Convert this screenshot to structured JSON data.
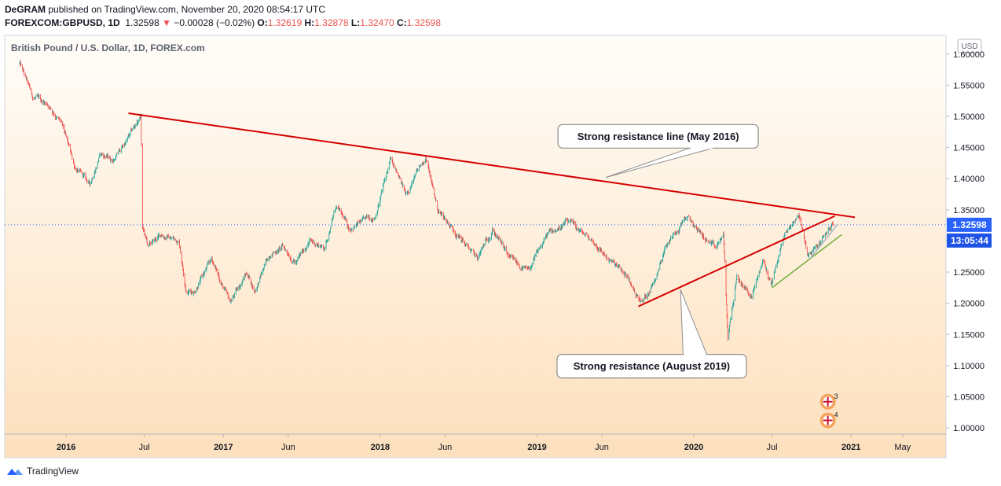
{
  "header": {
    "author": "DeGRAM",
    "published_text": "published on TradingView.com, November 20, 2020 08:54:17 UTC",
    "symbol": "FOREXCOM:GBPUSD, 1D",
    "last": "1.32598",
    "change_arrow": "▼",
    "change": "−0.00028 (−0.02%)",
    "o_label": "O:",
    "o_value": "1.32619",
    "h_label": "H:",
    "h_value": "1.32878",
    "l_label": "L:",
    "l_value": "1.32470",
    "c_label": "C:",
    "c_value": "1.32598"
  },
  "chart_data": {
    "type": "candlestick",
    "title": "British Pound / U.S. Dollar, 1D, FOREX.com",
    "currency": "USD",
    "x_tick_labels": [
      "2016",
      "Jul",
      "2017",
      "Jun",
      "2018",
      "Jun",
      "2019",
      "Jun",
      "2020",
      "Jul",
      "2021",
      "May"
    ],
    "y_tick_labels": [
      "1.60000",
      "1.55000",
      "1.50000",
      "1.45000",
      "1.40000",
      "1.35000",
      "1.30000",
      "1.25000",
      "1.20000",
      "1.15000",
      "1.10000",
      "1.05000",
      "1.00000"
    ],
    "ylim": [
      0.99,
      1.63
    ],
    "last_price": "1.32598",
    "last_price_value": 1.32598,
    "countdown": "13:05:44",
    "price_path": [
      [
        "2015-09-15",
        1.585
      ],
      [
        "2015-10-15",
        1.53
      ],
      [
        "2015-11-20",
        1.52
      ],
      [
        "2015-12-20",
        1.49
      ],
      [
        "2016-01-20",
        1.42
      ],
      [
        "2016-02-25",
        1.39
      ],
      [
        "2016-03-20",
        1.44
      ],
      [
        "2016-04-20",
        1.43
      ],
      [
        "2016-05-20",
        1.46
      ],
      [
        "2016-06-23",
        1.5
      ],
      [
        "2016-06-27",
        1.32
      ],
      [
        "2016-07-10",
        1.29
      ],
      [
        "2016-08-10",
        1.31
      ],
      [
        "2016-09-20",
        1.3
      ],
      [
        "2016-10-07",
        1.22
      ],
      [
        "2016-10-25",
        1.22
      ],
      [
        "2016-12-05",
        1.27
      ],
      [
        "2017-01-16",
        1.2
      ],
      [
        "2017-02-25",
        1.25
      ],
      [
        "2017-03-15",
        1.22
      ],
      [
        "2017-04-20",
        1.28
      ],
      [
        "2017-05-20",
        1.29
      ],
      [
        "2017-06-20",
        1.265
      ],
      [
        "2017-07-20",
        1.3
      ],
      [
        "2017-08-25",
        1.29
      ],
      [
        "2017-09-20",
        1.355
      ],
      [
        "2017-10-20",
        1.32
      ],
      [
        "2017-11-20",
        1.33
      ],
      [
        "2017-12-20",
        1.34
      ],
      [
        "2018-01-25",
        1.43
      ],
      [
        "2018-03-01",
        1.375
      ],
      [
        "2018-04-17",
        1.435
      ],
      [
        "2018-05-15",
        1.35
      ],
      [
        "2018-06-20",
        1.32
      ],
      [
        "2018-08-15",
        1.27
      ],
      [
        "2018-09-20",
        1.32
      ],
      [
        "2018-10-30",
        1.27
      ],
      [
        "2018-12-12",
        1.25
      ],
      [
        "2019-01-25",
        1.31
      ],
      [
        "2019-03-13",
        1.33
      ],
      [
        "2019-05-10",
        1.3
      ],
      [
        "2019-06-25",
        1.265
      ],
      [
        "2019-07-25",
        1.245
      ],
      [
        "2019-09-02",
        1.2
      ],
      [
        "2019-09-30",
        1.235
      ],
      [
        "2019-10-25",
        1.29
      ],
      [
        "2019-12-13",
        1.34
      ],
      [
        "2020-01-20",
        1.31
      ],
      [
        "2020-02-20",
        1.285
      ],
      [
        "2020-03-10",
        1.31
      ],
      [
        "2020-03-20",
        1.145
      ],
      [
        "2020-04-10",
        1.24
      ],
      [
        "2020-05-15",
        1.21
      ],
      [
        "2020-06-10",
        1.27
      ],
      [
        "2020-06-29",
        1.23
      ],
      [
        "2020-07-30",
        1.31
      ],
      [
        "2020-09-01",
        1.345
      ],
      [
        "2020-09-23",
        1.275
      ],
      [
        "2020-10-15",
        1.29
      ],
      [
        "2020-11-10",
        1.32
      ],
      [
        "2020-11-20",
        1.326
      ]
    ],
    "trendlines": [
      {
        "color": "#d50000",
        "from": [
          "2016-05-25",
          1.505
        ],
        "to": [
          "2021-01-10",
          1.338
        ]
      },
      {
        "color": "#d50000",
        "from": [
          "2019-08-25",
          1.195
        ],
        "to": [
          "2020-11-24",
          1.34
        ]
      },
      {
        "color": "#76b041",
        "from": [
          "2020-07-01",
          1.225
        ],
        "to": [
          "2020-12-10",
          1.31
        ]
      },
      {
        "color": "#b0b7c3",
        "from": [
          "2020-09-28",
          1.272
        ],
        "to": [
          "2020-12-01",
          1.327
        ]
      }
    ],
    "annotations": [
      {
        "text": "Strong resistance line (May 2016)",
        "date": "2019-10-10",
        "price": 1.468,
        "pointer": [
          "2019-06-10",
          1.402
        ]
      },
      {
        "text": "Strong resistance (August 2019)",
        "date": "2019-09-25",
        "price": 1.099,
        "pointer": [
          "2019-12-01",
          1.222
        ]
      }
    ],
    "events": [
      {
        "label": "3",
        "date": "2020-11-08",
        "price": 1.042
      },
      {
        "label": "4",
        "date": "2020-11-08",
        "price": 1.012
      }
    ]
  },
  "footer": {
    "brand": "TradingView"
  },
  "colors": {
    "up": "#26a69a",
    "down": "#ef5350",
    "last_price_bg": "#2962ff",
    "countdown_bg": "#1e53e5",
    "line_red": "#d50000",
    "line_green": "#76b041"
  }
}
